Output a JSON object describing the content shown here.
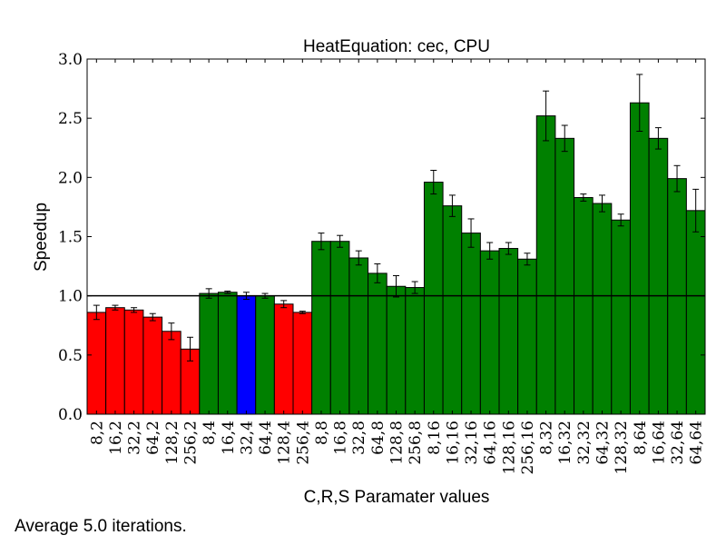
{
  "chart_data": {
    "type": "bar",
    "title": "HeatEquation: cec, CPU",
    "xlabel": "C,R,S Paramater values",
    "ylabel": "Speedup",
    "ylim": [
      0,
      3.0
    ],
    "yticks": [
      "0.0",
      "0.5",
      "1.0",
      "1.5",
      "2.0",
      "2.5",
      "3.0"
    ],
    "reference_line": 1.0,
    "grid": false,
    "categories": [
      "8,2",
      "16,2",
      "32,2",
      "64,2",
      "128,2",
      "256,2",
      "8,4",
      "16,4",
      "32,4",
      "64,4",
      "128,4",
      "256,4",
      "8,8",
      "16,8",
      "32,8",
      "64,8",
      "128,8",
      "256,8",
      "8,16",
      "16,16",
      "32,16",
      "64,16",
      "128,16",
      "256,16",
      "8,32",
      "16,32",
      "32,32",
      "64,32",
      "128,32",
      "8,64",
      "16,64",
      "32,64",
      "64,64"
    ],
    "values": [
      0.86,
      0.9,
      0.88,
      0.82,
      0.7,
      0.55,
      1.02,
      1.03,
      1.0,
      1.0,
      0.93,
      0.86,
      1.46,
      1.46,
      1.32,
      1.19,
      1.08,
      1.07,
      1.96,
      1.76,
      1.53,
      1.38,
      1.4,
      1.31,
      2.52,
      2.33,
      1.83,
      1.78,
      1.64,
      2.63,
      2.33,
      1.99,
      1.72
    ],
    "errors": [
      0.06,
      0.02,
      0.02,
      0.03,
      0.07,
      0.1,
      0.04,
      0.01,
      0.03,
      0.02,
      0.03,
      0.01,
      0.07,
      0.05,
      0.06,
      0.08,
      0.09,
      0.05,
      0.1,
      0.09,
      0.12,
      0.07,
      0.05,
      0.05,
      0.21,
      0.11,
      0.03,
      0.07,
      0.05,
      0.24,
      0.09,
      0.11,
      0.18
    ],
    "colors": [
      "#ff0000",
      "#ff0000",
      "#ff0000",
      "#ff0000",
      "#ff0000",
      "#ff0000",
      "#008000",
      "#008000",
      "#0000ff",
      "#008000",
      "#ff0000",
      "#ff0000",
      "#008000",
      "#008000",
      "#008000",
      "#008000",
      "#008000",
      "#008000",
      "#008000",
      "#008000",
      "#008000",
      "#008000",
      "#008000",
      "#008000",
      "#008000",
      "#008000",
      "#008000",
      "#008000",
      "#008000",
      "#008000",
      "#008000",
      "#008000",
      "#008000"
    ]
  },
  "footnote": "Average 5.0 iterations."
}
